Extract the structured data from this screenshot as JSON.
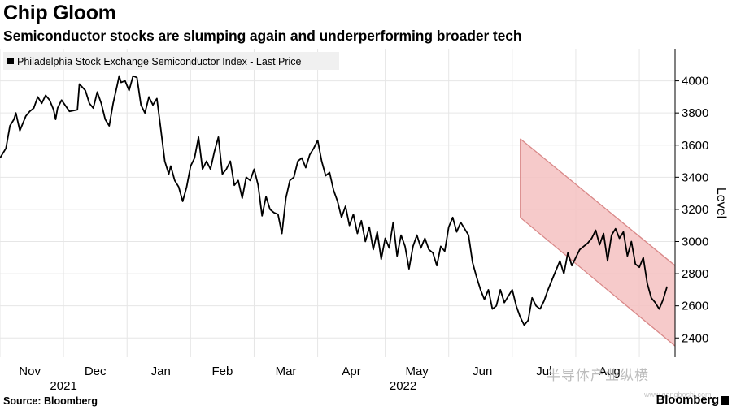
{
  "header": {
    "title": "Chip Gloom",
    "subtitle": "Semiconductor stocks are slumping again and underperforming broader tech"
  },
  "footer": {
    "source": "Source: Bloomberg",
    "brand": "Bloomberg"
  },
  "watermark": {
    "text": "半导体产业纵横",
    "sub": "www.gongboshi.com"
  },
  "chart_data": {
    "type": "line",
    "series": [
      {
        "name": "Philadelphia Stock Exchange Semiconductor Index - Last Price",
        "color": "#000000",
        "points": [
          [
            0.0,
            3520
          ],
          [
            1.5,
            3580
          ],
          [
            2.5,
            3720
          ],
          [
            3.5,
            3760
          ],
          [
            4.0,
            3800
          ],
          [
            5.0,
            3690
          ],
          [
            6.5,
            3780
          ],
          [
            7.5,
            3810
          ],
          [
            8.5,
            3830
          ],
          [
            9.5,
            3900
          ],
          [
            10.5,
            3860
          ],
          [
            11.5,
            3910
          ],
          [
            12.5,
            3880
          ],
          [
            13.5,
            3820
          ],
          [
            14.0,
            3760
          ],
          [
            14.5,
            3830
          ],
          [
            15.5,
            3880
          ],
          [
            17.5,
            3810
          ],
          [
            19.5,
            3820
          ],
          [
            20.0,
            3980
          ],
          [
            21.5,
            3940
          ],
          [
            22.5,
            3860
          ],
          [
            23.5,
            3830
          ],
          [
            24.5,
            3930
          ],
          [
            25.5,
            3860
          ],
          [
            26.5,
            3760
          ],
          [
            27.5,
            3720
          ],
          [
            28.5,
            3860
          ],
          [
            29.5,
            3970
          ],
          [
            30.0,
            4030
          ],
          [
            30.5,
            3990
          ],
          [
            31.5,
            4000
          ],
          [
            32.5,
            3940
          ],
          [
            33.5,
            4030
          ],
          [
            34.5,
            4020
          ],
          [
            35.5,
            3850
          ],
          [
            36.5,
            3800
          ],
          [
            37.5,
            3900
          ],
          [
            38.5,
            3850
          ],
          [
            39.5,
            3890
          ],
          [
            40.5,
            3700
          ],
          [
            41.5,
            3500
          ],
          [
            42.5,
            3420
          ],
          [
            43.0,
            3470
          ],
          [
            44.0,
            3380
          ],
          [
            45.0,
            3340
          ],
          [
            46.0,
            3250
          ],
          [
            47.0,
            3340
          ],
          [
            48.0,
            3470
          ],
          [
            49.0,
            3520
          ],
          [
            50.0,
            3650
          ],
          [
            51.0,
            3450
          ],
          [
            52.0,
            3500
          ],
          [
            53.0,
            3450
          ],
          [
            54.0,
            3560
          ],
          [
            55.0,
            3650
          ],
          [
            56.0,
            3420
          ],
          [
            57.0,
            3450
          ],
          [
            58.0,
            3500
          ],
          [
            59.0,
            3350
          ],
          [
            60.0,
            3380
          ],
          [
            61.0,
            3270
          ],
          [
            62.0,
            3400
          ],
          [
            63.0,
            3380
          ],
          [
            64.0,
            3450
          ],
          [
            65.0,
            3350
          ],
          [
            66.0,
            3160
          ],
          [
            67.0,
            3280
          ],
          [
            68.0,
            3200
          ],
          [
            69.0,
            3180
          ],
          [
            70.0,
            3170
          ],
          [
            71.0,
            3050
          ],
          [
            72.0,
            3270
          ],
          [
            73.0,
            3380
          ],
          [
            74.0,
            3400
          ],
          [
            75.0,
            3500
          ],
          [
            76.0,
            3520
          ],
          [
            77.0,
            3460
          ],
          [
            78.0,
            3540
          ],
          [
            79.0,
            3580
          ],
          [
            80.0,
            3630
          ],
          [
            81.0,
            3500
          ],
          [
            82.0,
            3410
          ],
          [
            83.0,
            3430
          ],
          [
            84.0,
            3320
          ],
          [
            85.0,
            3250
          ],
          [
            86.0,
            3150
          ],
          [
            87.0,
            3220
          ],
          [
            88.0,
            3100
          ],
          [
            89.0,
            3170
          ],
          [
            90.0,
            3050
          ],
          [
            91.0,
            3130
          ],
          [
            92.0,
            3000
          ],
          [
            93.0,
            3090
          ],
          [
            94.0,
            2950
          ],
          [
            95.0,
            3060
          ],
          [
            96.0,
            2890
          ],
          [
            97.0,
            3020
          ],
          [
            98.0,
            2960
          ],
          [
            99.0,
            3120
          ],
          [
            100.0,
            2910
          ],
          [
            101.0,
            3040
          ],
          [
            102.0,
            2970
          ],
          [
            103.0,
            2830
          ],
          [
            104.0,
            2970
          ],
          [
            105.0,
            3040
          ],
          [
            106.0,
            2960
          ],
          [
            107.0,
            3020
          ],
          [
            108.0,
            2950
          ],
          [
            109.0,
            2930
          ],
          [
            110.0,
            2850
          ],
          [
            111.0,
            2970
          ],
          [
            112.0,
            2940
          ],
          [
            113.0,
            3090
          ],
          [
            114.0,
            3150
          ],
          [
            115.0,
            3060
          ],
          [
            116.0,
            3120
          ],
          [
            117.0,
            3080
          ],
          [
            118.0,
            3040
          ],
          [
            119.0,
            2870
          ],
          [
            120.0,
            2780
          ],
          [
            121.0,
            2700
          ],
          [
            122.0,
            2640
          ],
          [
            123.0,
            2700
          ],
          [
            124.0,
            2580
          ],
          [
            125.0,
            2600
          ],
          [
            126.0,
            2700
          ],
          [
            127.0,
            2620
          ],
          [
            128.0,
            2660
          ],
          [
            129.0,
            2700
          ],
          [
            130.0,
            2600
          ],
          [
            131.0,
            2530
          ],
          [
            132.0,
            2480
          ],
          [
            133.0,
            2510
          ],
          [
            134.0,
            2650
          ],
          [
            135.0,
            2600
          ],
          [
            136.0,
            2580
          ],
          [
            137.0,
            2630
          ],
          [
            138.0,
            2700
          ],
          [
            139.0,
            2760
          ],
          [
            140.0,
            2820
          ],
          [
            141.0,
            2880
          ],
          [
            142.0,
            2800
          ],
          [
            143.0,
            2930
          ],
          [
            144.0,
            2850
          ],
          [
            145.0,
            2900
          ],
          [
            146.0,
            2950
          ],
          [
            147.0,
            2970
          ],
          [
            148.0,
            2990
          ],
          [
            149.0,
            3020
          ],
          [
            150.0,
            3070
          ],
          [
            151.0,
            2980
          ],
          [
            152.0,
            3050
          ],
          [
            153.0,
            2880
          ],
          [
            154.0,
            3040
          ],
          [
            155.0,
            3080
          ],
          [
            156.0,
            3020
          ],
          [
            157.0,
            3060
          ],
          [
            158.0,
            2910
          ],
          [
            159.0,
            3000
          ],
          [
            160.0,
            2860
          ],
          [
            161.0,
            2840
          ],
          [
            162.0,
            2900
          ],
          [
            163.0,
            2740
          ],
          [
            164.0,
            2650
          ],
          [
            165.0,
            2620
          ],
          [
            166.0,
            2580
          ],
          [
            167.0,
            2640
          ],
          [
            168.0,
            2720
          ]
        ]
      }
    ],
    "highlight_band": {
      "type": "parallel-channel",
      "fill": "#f4c1c1",
      "stroke": "#d98888",
      "upper_line": [
        [
          131.0,
          3640
        ],
        [
          170.0,
          2850
        ]
      ],
      "lower_line": [
        [
          131.0,
          3150
        ],
        [
          170.0,
          2350
        ]
      ]
    },
    "x_range": [
      0,
      170
    ],
    "x_ticks": [
      {
        "pos": 7.5,
        "label": "Nov"
      },
      {
        "pos": 24.0,
        "label": "Dec"
      },
      {
        "pos": 40.5,
        "label": "Jan"
      },
      {
        "pos": 56.0,
        "label": "Feb"
      },
      {
        "pos": 72.0,
        "label": "Mar"
      },
      {
        "pos": 88.5,
        "label": "Apr"
      },
      {
        "pos": 105.0,
        "label": "May"
      },
      {
        "pos": 121.5,
        "label": "Jun"
      },
      {
        "pos": 137.0,
        "label": "Jul"
      },
      {
        "pos": 153.5,
        "label": "Aug"
      }
    ],
    "x_gridlines": [
      0,
      16,
      32,
      48,
      64,
      80,
      97,
      113,
      129,
      145,
      161
    ],
    "year_labels": [
      {
        "pos": 16.0,
        "label": "2021"
      },
      {
        "pos": 101.5,
        "label": "2022"
      }
    ],
    "ylim": [
      2280,
      4200
    ],
    "yticks": [
      2400,
      2600,
      2800,
      3000,
      3200,
      3400,
      3600,
      3800,
      4000
    ],
    "ylabel": "Level",
    "legend": "Philadelphia Stock Exchange Semiconductor Index - Last Price",
    "legend_position": "top-left",
    "grid": true
  }
}
